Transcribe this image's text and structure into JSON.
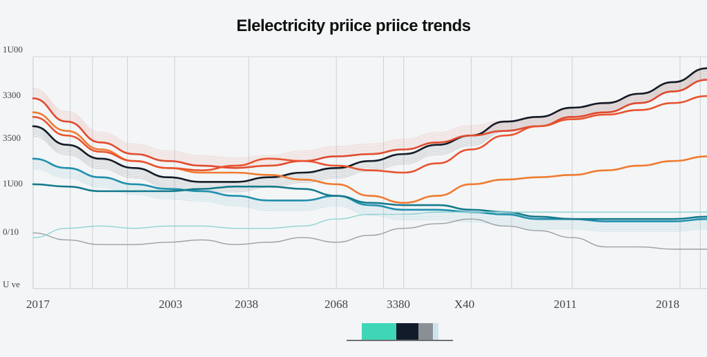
{
  "chart_data": {
    "type": "line",
    "title": "Elelectricity priice priice trends",
    "xlabel": "",
    "ylabel": "",
    "x_ticks": [
      "2017",
      "2003",
      "2038",
      "2068",
      "3380",
      "X40",
      "2011",
      "2018"
    ],
    "y_ticks": [
      "1U00",
      "3300",
      "3500",
      "1U00",
      "0/10",
      "U ve"
    ],
    "xlim": [
      0,
      100
    ],
    "ylim": [
      0,
      100
    ],
    "grid": true,
    "legend_colors": [
      "#3fd6b8",
      "#111b2a",
      "#8a8f96",
      "#cfe3ea"
    ],
    "series": [
      {
        "name": "black",
        "color": "#111a25",
        "x": [
          0,
          5,
          10,
          15,
          20,
          25,
          30,
          35,
          40,
          45,
          50,
          55,
          60,
          65,
          70,
          75,
          80,
          85,
          90,
          95,
          100
        ],
        "y": [
          70,
          62,
          56,
          52,
          48,
          46,
          46,
          48,
          50,
          52,
          55,
          58,
          62,
          66,
          72,
          74,
          78,
          80,
          84,
          89,
          95
        ]
      },
      {
        "name": "red",
        "color": "#e04a2e",
        "x": [
          0,
          5,
          10,
          15,
          20,
          25,
          30,
          35,
          40,
          45,
          50,
          55,
          60,
          65,
          70,
          75,
          80,
          85,
          90,
          95,
          100
        ],
        "y": [
          82,
          72,
          63,
          58,
          55,
          53,
          52,
          53,
          55,
          57,
          58,
          60,
          63,
          66,
          68,
          70,
          74,
          76,
          80,
          85,
          90
        ]
      },
      {
        "name": "orange",
        "color": "#f07a30",
        "x": [
          0,
          5,
          10,
          15,
          20,
          25,
          30,
          35,
          40,
          45,
          50,
          55,
          60,
          65,
          70,
          75,
          80,
          85,
          90,
          95,
          100
        ],
        "y": [
          76,
          68,
          60,
          55,
          52,
          50,
          50,
          49,
          47,
          45,
          40,
          37,
          40,
          45,
          47,
          48,
          49,
          51,
          53,
          55,
          57
        ]
      },
      {
        "name": "orange-red",
        "color": "#e8532f",
        "x": [
          0,
          5,
          10,
          15,
          20,
          25,
          30,
          35,
          40,
          45,
          50,
          55,
          60,
          65,
          70,
          75,
          80,
          85,
          90,
          95,
          100
        ],
        "y": [
          74,
          66,
          59,
          55,
          52,
          51,
          53,
          56,
          55,
          53,
          51,
          50,
          54,
          60,
          66,
          70,
          73,
          75,
          77,
          80,
          83
        ]
      },
      {
        "name": "teal",
        "color": "#1e8fae",
        "x": [
          0,
          5,
          10,
          15,
          20,
          25,
          30,
          35,
          40,
          45,
          50,
          55,
          60,
          65,
          70,
          75,
          80,
          85,
          90,
          95,
          100
        ],
        "y": [
          56,
          52,
          48,
          45,
          43,
          42,
          40,
          38,
          38,
          40,
          36,
          34,
          34,
          33,
          32,
          30,
          30,
          29,
          29,
          29,
          30
        ]
      },
      {
        "name": "dark-teal",
        "color": "#157a8c",
        "x": [
          0,
          5,
          10,
          15,
          20,
          25,
          30,
          35,
          40,
          45,
          50,
          55,
          60,
          65,
          70,
          75,
          80,
          85,
          90,
          95,
          100
        ],
        "y": [
          45,
          44,
          42,
          42,
          42,
          43,
          44,
          44,
          43,
          40,
          37,
          36,
          36,
          34,
          33,
          31,
          30,
          30,
          30,
          30,
          31
        ]
      },
      {
        "name": "gray",
        "color": "#9aa0a6",
        "x": [
          0,
          5,
          10,
          15,
          20,
          25,
          30,
          35,
          40,
          45,
          50,
          55,
          60,
          65,
          70,
          75,
          80,
          85,
          90,
          95,
          100
        ],
        "y": [
          24,
          21,
          19,
          19,
          20,
          21,
          19,
          20,
          22,
          20,
          23,
          26,
          28,
          30,
          27,
          25,
          22,
          18,
          18,
          17,
          17
        ]
      },
      {
        "name": "light-teal",
        "color": "#8fd3d5",
        "x": [
          0,
          5,
          10,
          15,
          20,
          25,
          30,
          35,
          40,
          45,
          50,
          55,
          60,
          65,
          70,
          75,
          80,
          85,
          90,
          95,
          100
        ],
        "y": [
          22,
          26,
          27,
          26,
          27,
          27,
          26,
          26,
          27,
          30,
          32,
          32,
          33,
          33,
          33,
          33,
          33,
          33,
          33,
          33,
          33
        ]
      }
    ]
  }
}
